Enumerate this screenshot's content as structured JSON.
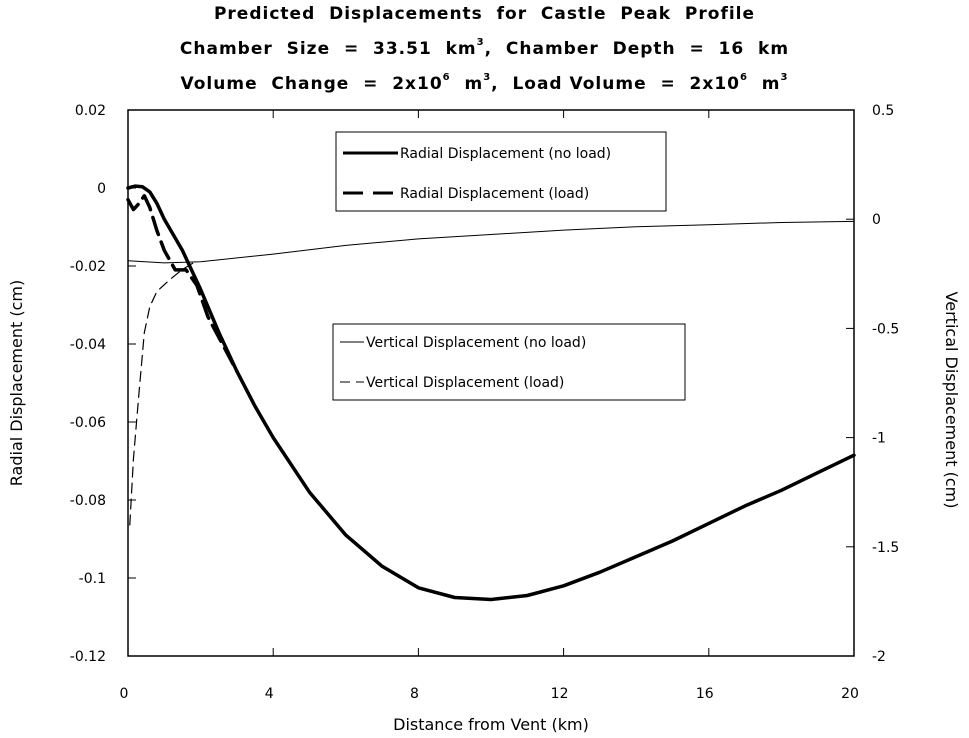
{
  "titles": {
    "line1": "Predicted  Displacements  for  Castle  Peak  Profile",
    "line2_pre": "Chamber  Size  =  33.51  km",
    "line2_sup": "3",
    "line2_post": ",  Chamber  Depth  =  16  km",
    "line3_a": "Volume  Change  =  2x10",
    "line3_b": "6",
    "line3_c": "  m",
    "line3_d": "3",
    "line3_e": ",  Load Volume  =  2x10",
    "line3_f": "6",
    "line3_g": "  m",
    "line3_h": "3"
  },
  "chart_data": {
    "type": "line",
    "xlabel": "Distance  from  Vent  (km)",
    "ylabel_left": "Radial  Displacement  (cm)",
    "ylabel_right": "Vertical  Displacement  (cm)",
    "xlim": [
      0,
      20
    ],
    "ylim_left": [
      -0.12,
      0.02
    ],
    "ylim_right": [
      -2,
      0.5
    ],
    "x_ticks": [
      "0",
      "4",
      "8",
      "12",
      "16",
      "20"
    ],
    "x_tick_values": [
      0,
      4,
      8,
      12,
      16,
      20
    ],
    "left_ticks": [
      "0.02",
      "0",
      "-0.02",
      "-0.04",
      "-0.06",
      "-0.08",
      "-0.1",
      "-0.12"
    ],
    "left_tick_values": [
      0.02,
      0,
      -0.02,
      -0.04,
      -0.06,
      -0.08,
      -0.1,
      -0.12
    ],
    "right_ticks": [
      "0.5",
      "0",
      "-0.5",
      "-1",
      "-1.5",
      "-2"
    ],
    "right_tick_values": [
      0.5,
      0,
      -0.5,
      -1,
      -1.5,
      -2
    ],
    "grid": false,
    "legends": [
      {
        "position": "upper-center",
        "entries": [
          "Radial  Displacement  (no  load)",
          "Radial  Displacement  (load)"
        ]
      },
      {
        "position": "center",
        "entries": [
          "Vertical  Displacement  (no  load)",
          "Vertical  Displacement  (load)"
        ]
      }
    ],
    "series": [
      {
        "name": "Radial  Displacement  (no  load)",
        "axis": "left",
        "style": "solid-thick",
        "x": [
          0,
          0.2,
          0.4,
          0.6,
          0.8,
          1.0,
          1.5,
          2.0,
          2.5,
          3,
          3.5,
          4,
          5,
          6,
          7,
          8,
          9,
          10,
          11,
          12,
          13,
          14,
          15,
          16,
          17,
          18,
          19,
          20
        ],
        "y": [
          0.0,
          0.0005,
          0.0003,
          -0.001,
          -0.004,
          -0.008,
          -0.016,
          -0.026,
          -0.037,
          -0.047,
          -0.056,
          -0.064,
          -0.078,
          -0.089,
          -0.097,
          -0.1025,
          -0.105,
          -0.1055,
          -0.1045,
          -0.102,
          -0.0985,
          -0.0945,
          -0.0905,
          -0.086,
          -0.0815,
          -0.0775,
          -0.073,
          -0.0685
        ]
      },
      {
        "name": "Radial  Displacement  (load)",
        "axis": "left",
        "style": "dashed-thick",
        "x": [
          0,
          0.15,
          0.3,
          0.45,
          0.6,
          0.8,
          1.0,
          1.3,
          1.6,
          1.9,
          2.2,
          2.6,
          3.0
        ],
        "y": [
          -0.003,
          -0.0055,
          -0.004,
          -0.002,
          -0.005,
          -0.011,
          -0.016,
          -0.021,
          -0.021,
          -0.025,
          -0.033,
          -0.04,
          -0.047
        ]
      },
      {
        "name": "Vertical  Displacement  (no  load)",
        "axis": "right",
        "style": "solid-thin",
        "x": [
          0,
          1,
          2,
          4,
          6,
          8,
          10,
          12,
          14,
          16,
          18,
          20
        ],
        "y": [
          -0.19,
          -0.2,
          -0.195,
          -0.16,
          -0.12,
          -0.09,
          -0.07,
          -0.05,
          -0.035,
          -0.025,
          -0.015,
          -0.01
        ]
      },
      {
        "name": "Vertical  Displacement  (load)",
        "axis": "right",
        "style": "dashed-thin",
        "x": [
          0.05,
          0.15,
          0.3,
          0.45,
          0.6,
          0.8,
          1.0,
          1.2,
          1.5,
          1.8
        ],
        "y": [
          -1.4,
          -1.1,
          -0.8,
          -0.52,
          -0.4,
          -0.33,
          -0.3,
          -0.27,
          -0.23,
          -0.2
        ]
      }
    ]
  }
}
